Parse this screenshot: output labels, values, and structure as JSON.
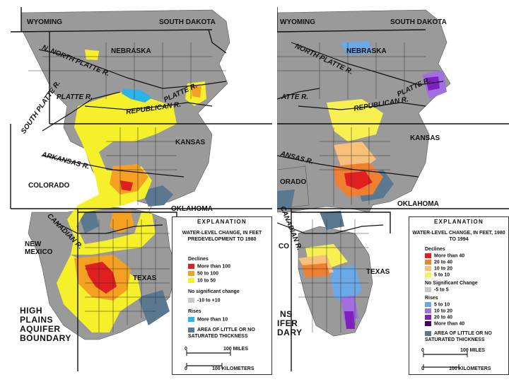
{
  "colors": {
    "gray": "#9a9a9a",
    "red": "#e02020",
    "orange": "#f5a020",
    "yellow": "#f5f02a",
    "cyan": "#2ab4e8",
    "slate": "#5a7890",
    "light_gray": "#c8c8c8",
    "blue_r": "#6aa8e8",
    "violet_r": "#a070e0",
    "purple_r": "#8020c0",
    "dark_purple_r": "#400060",
    "orange_r": "#f08030",
    "light_orange_r": "#f8c078",
    "yellow_r": "#f8f050"
  },
  "left_map": {
    "states": {
      "wyoming": "WYOMING",
      "south_dakota": "SOUTH DAKOTA",
      "nebraska": "NEBRASKA",
      "kansas": "KANSAS",
      "colorado": "COLORADO",
      "oklahoma": "OKLAHOMA",
      "new_mexico": "NEW\nMEXICO",
      "texas": "TEXAS"
    },
    "rivers": {
      "north_platte": "N. NORTH PLATTE R.",
      "platte": "PLATTE R.",
      "platte_east": "PLATTE R.",
      "south_platte": "SOUTH PLATTE R.",
      "republican": "REPUBLICAN R.",
      "arkansas": "ARKANSAS R.",
      "canadian": "CANADIAN R."
    },
    "boundary_label": [
      "HIGH",
      "PLAINS",
      "AQUIFER",
      "BOUNDARY"
    ],
    "legend": {
      "title": "EXPLANATION",
      "subtitle": "WATER-LEVEL CHANGE, IN FEET PREDEVELOPMENT TO 1980",
      "declines_head": "Declines",
      "declines": [
        "More than 100",
        "50 to 100",
        "10 to 50"
      ],
      "no_change_head": "No significant change",
      "no_change": "-10 to +10",
      "rises_head": "Rises",
      "rises": "More than 10",
      "area_label": "AREA OF LITTLE OR NO SATURATED THICKNESS",
      "scale_miles": [
        "0",
        "100 MILES"
      ],
      "scale_km": [
        "0",
        "100 KILOMETERS"
      ]
    }
  },
  "right_map": {
    "states": {
      "wyoming": "WYOMING",
      "south_dakota": "SOUTH DAKOTA",
      "nebraska": "NEBRASKA",
      "kansas": "KANSAS",
      "colorado": "ORADO",
      "oklahoma": "OKLAHOMA",
      "new_mexico": "CO",
      "texas": "TEXAS"
    },
    "rivers": {
      "north_platte": "NORTH PLATTE R.",
      "platte": "PLATTE R.",
      "platte_west": "ATTE R.",
      "republican": "REPUBLICAN R.",
      "arkansas": "ANSAS R.",
      "canadian": "CANADIAN R."
    },
    "boundary_label": [
      "NS",
      "IFER",
      "DARY"
    ],
    "legend": {
      "title": "EXPLANATION",
      "subtitle": "WATER-LEVEL CHANGE, IN FEET, 1980 TO 1994",
      "declines_head": "Declines",
      "declines": [
        "More than 40",
        "20 to 40",
        "10 to 20",
        "5 to 10"
      ],
      "no_change_head": "No Significant Change",
      "no_change": "-5 to 5",
      "rises_head": "Rises",
      "rises": [
        "5 to 10",
        "10 to 20",
        "20 to 40",
        "More than 40"
      ],
      "area_label": "AREA OF LITTLE OR NO SATURATED THICKNESS",
      "scale_miles": [
        "0",
        "100 MILES"
      ],
      "scale_km": [
        "0",
        "100 KILOMETERS"
      ]
    }
  }
}
